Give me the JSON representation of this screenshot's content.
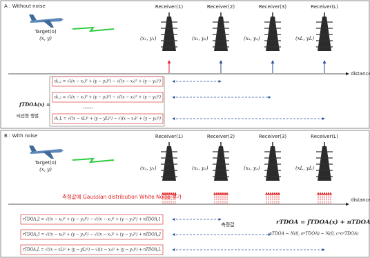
{
  "panel_a": {
    "title": "A : Without noise",
    "target": "Target(o)",
    "target_coords": "(x, y)",
    "receivers": [
      {
        "label": "Receiver(1)",
        "coords": "(x₁, y₁)"
      },
      {
        "label": "Receiver(2)",
        "coords": "(x₂, y₂)"
      },
      {
        "label": "Receiver(3)",
        "coords": "(x₃, y₃)"
      },
      {
        "label": "Receiver(L)",
        "coords": "(xL, yL)"
      }
    ],
    "axis_label": "distance",
    "function_label": "fTDOA(x) =",
    "function_note": "비선형 행렬",
    "equations": [
      "d₁,₂ = √((x − x₂)² + (y − y₂)²) − √((x − x₁)² + (y − y₁)²)",
      "d₁,₃ = √((x − x₃)² + (y − y₃)²) − √((x − x₁)² + (y − y₁)²)",
      "d₁,L = √((x − xL)² + (y − yL)²) − √((x − x₁)² + (y − y₁)²)"
    ],
    "ellipsis": "------"
  },
  "panel_b": {
    "title": "B : With noise",
    "target": "Target(o)",
    "target_coords": "(x, y)",
    "receivers": [
      {
        "label": "Receiver(1)",
        "coords": "(x₁, y₁)"
      },
      {
        "label": "Receiver(2)",
        "coords": "(x₂, y₂)"
      },
      {
        "label": "Receiver(3)",
        "coords": "(x₃, y₃)"
      },
      {
        "label": "Receiver(L)",
        "coords": "(xL, yL)"
      }
    ],
    "noise_note": "측정값에 Gaussian distribution White Noise 부가",
    "axis_label": "distance",
    "equations": [
      "rTDOA,2 = √((x − x₂)² + (y − y₂)²) − √((x − x₁)² + (y − y₁)²) + nTDOA,1",
      "rTDOA,3 = √((x − x₃)² + (y − y₃)²) − √((x − x₁)² + (y − y₁)²) + nTDOA,2",
      "rTDOA,L = √((x − xL)² + (y − yL)²) − √((x − x₁)² + (y − y₁)²) + nTDOA,L"
    ],
    "measurement_label": "측정값",
    "model": "rTDOA = fTDOA(x) + nTDOA",
    "noise_model": "nTDOA ~ N(0, σ²TDOA) ~ N(0, c²σ²TDOA)"
  }
}
